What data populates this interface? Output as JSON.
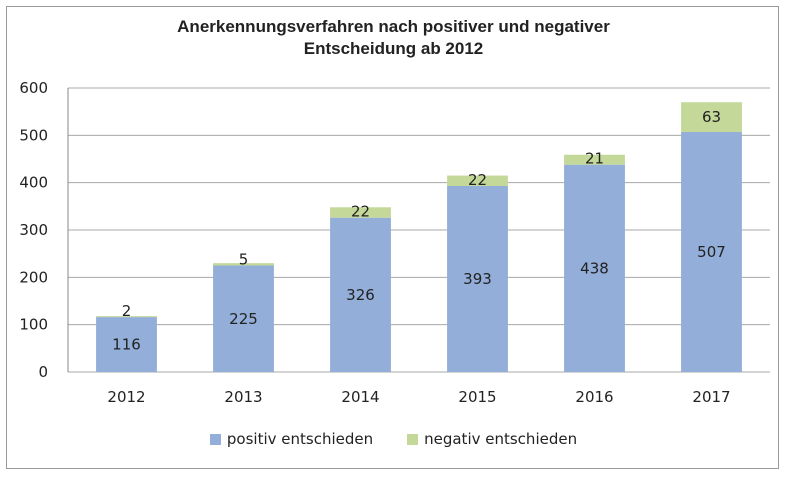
{
  "chart_data": {
    "type": "bar",
    "stacked": true,
    "title_line1": "Anerkennungsverfahren nach positiver und negativer",
    "title_line2": "Entscheidung ab 2012",
    "xlabel": "",
    "ylabel": "",
    "categories": [
      "2012",
      "2013",
      "2014",
      "2015",
      "2016",
      "2017"
    ],
    "series": [
      {
        "name": "positiv entschieden",
        "color": "#93aed8",
        "values": [
          116,
          225,
          326,
          393,
          438,
          507
        ]
      },
      {
        "name": "negativ entschieden",
        "color": "#c4d89a",
        "values": [
          2,
          5,
          22,
          22,
          21,
          63
        ]
      }
    ],
    "ylim": [
      0,
      600
    ],
    "yticks": [
      0,
      100,
      200,
      300,
      400,
      500,
      600
    ],
    "grid": true,
    "legend_position": "bottom"
  }
}
